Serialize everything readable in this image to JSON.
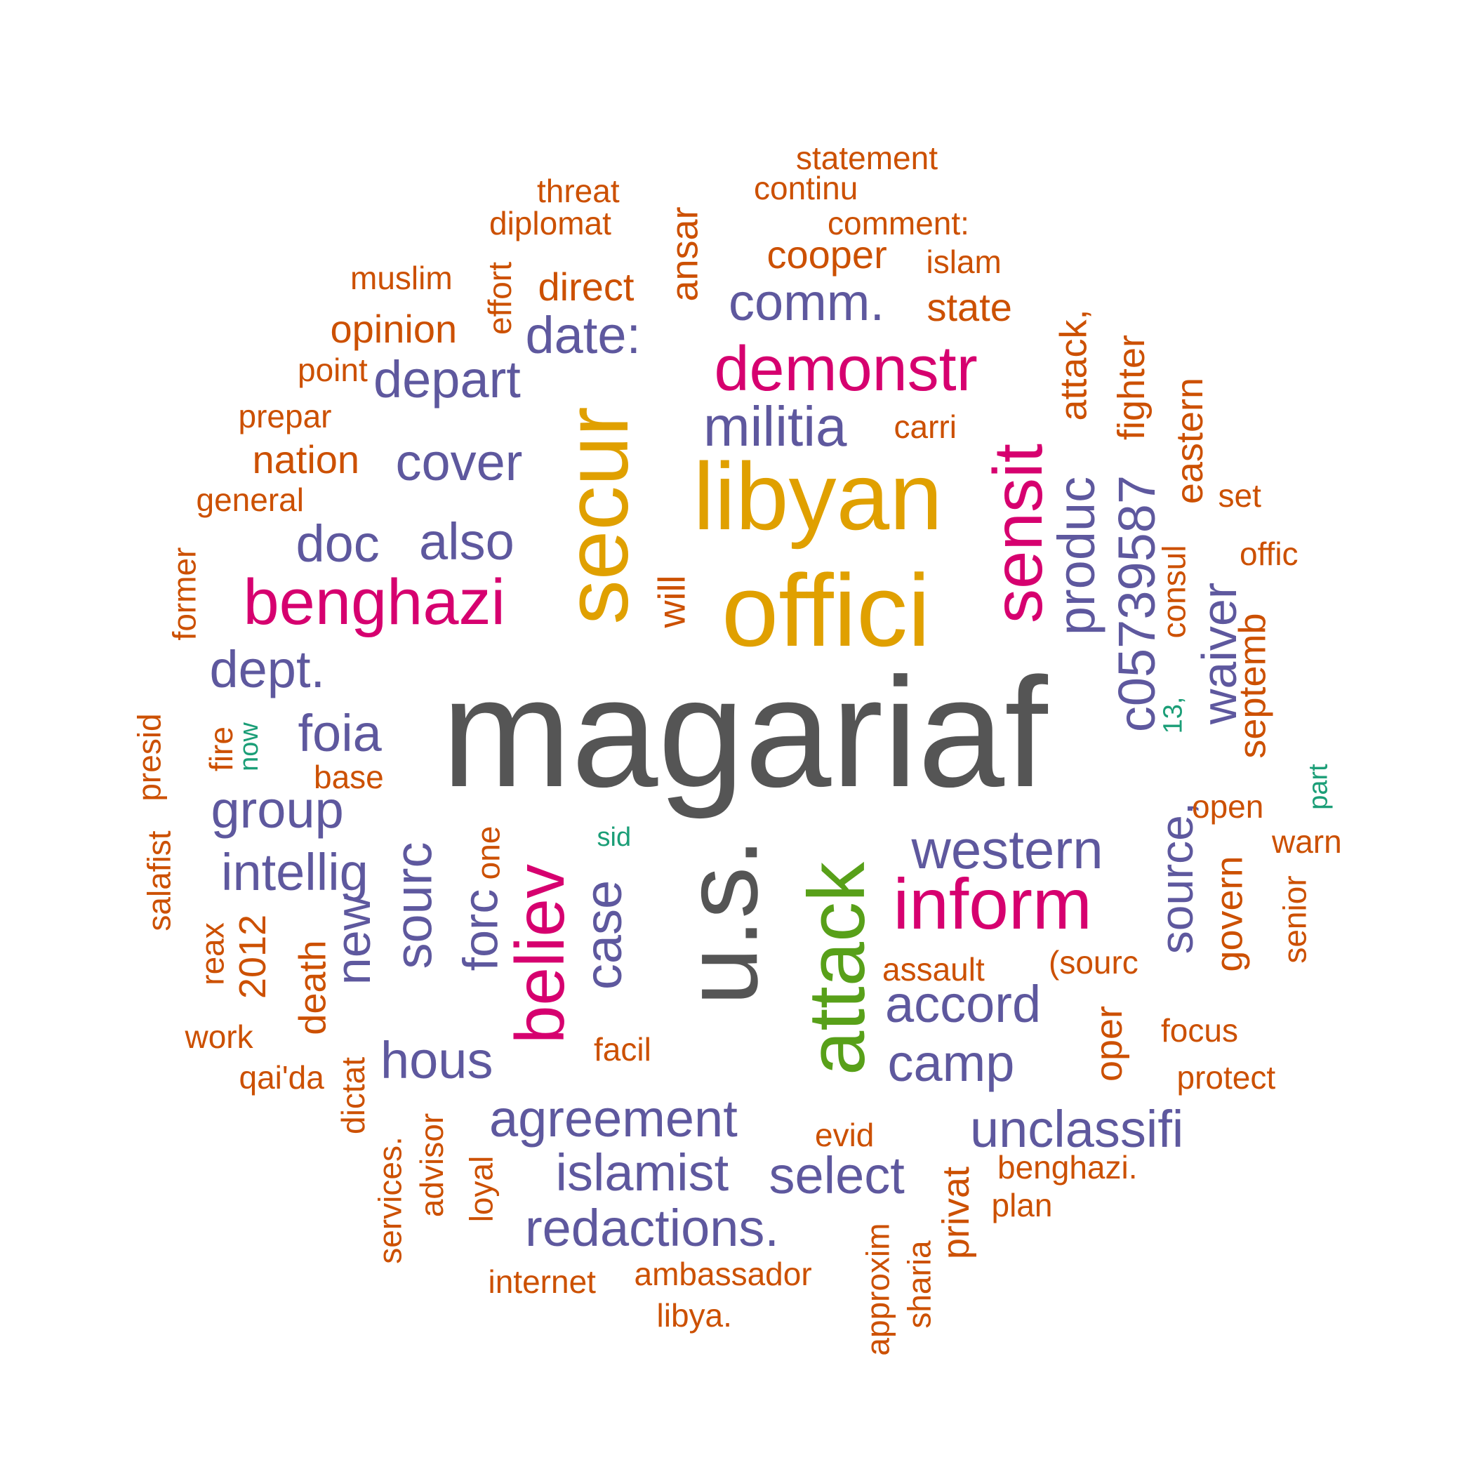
{
  "colors": {
    "gray": "#555555",
    "gold": "#E0A000",
    "pink": "#D6006F",
    "green": "#58A019",
    "purple": "#5E589E",
    "orange": "#CC5000",
    "teal": "#1B9E77"
  },
  "words": [
    {
      "text": "magariaf",
      "weight": 10,
      "tier": "gray"
    },
    {
      "text": "u.s.",
      "weight": 9,
      "tier": "gray"
    },
    {
      "text": "offici",
      "weight": 8,
      "tier": "gold"
    },
    {
      "text": "libyan",
      "weight": 8,
      "tier": "gold"
    },
    {
      "text": "secur",
      "weight": 8,
      "tier": "gold"
    },
    {
      "text": "attack",
      "weight": 7,
      "tier": "green"
    },
    {
      "text": "benghazi",
      "weight": 6,
      "tier": "pink"
    },
    {
      "text": "inform",
      "weight": 6,
      "tier": "pink"
    },
    {
      "text": "believ",
      "weight": 6,
      "tier": "pink"
    },
    {
      "text": "sensit",
      "weight": 6,
      "tier": "pink"
    },
    {
      "text": "demonstr",
      "weight": 6,
      "tier": "pink"
    },
    {
      "text": "western",
      "weight": 5,
      "tier": "purple"
    },
    {
      "text": "militia",
      "weight": 5,
      "tier": "purple"
    },
    {
      "text": "c05739587",
      "weight": 5,
      "tier": "purple"
    },
    {
      "text": "agreement",
      "weight": 5,
      "tier": "purple"
    },
    {
      "text": "redactions.",
      "weight": 5,
      "tier": "purple"
    },
    {
      "text": "unclassifi",
      "weight": 5,
      "tier": "purple"
    },
    {
      "text": "islamist",
      "weight": 5,
      "tier": "purple"
    },
    {
      "text": "select",
      "weight": 5,
      "tier": "purple"
    },
    {
      "text": "accord",
      "weight": 5,
      "tier": "purple"
    },
    {
      "text": "camp",
      "weight": 5,
      "tier": "purple"
    },
    {
      "text": "hous",
      "weight": 5,
      "tier": "purple"
    },
    {
      "text": "sourc",
      "weight": 5,
      "tier": "purple"
    },
    {
      "text": "case",
      "weight": 5,
      "tier": "purple"
    },
    {
      "text": "produc",
      "weight": 5,
      "tier": "purple"
    },
    {
      "text": "waiver",
      "weight": 5,
      "tier": "purple"
    },
    {
      "text": "source,",
      "weight": 5,
      "tier": "purple"
    },
    {
      "text": "depart",
      "weight": 5,
      "tier": "purple"
    },
    {
      "text": "date:",
      "weight": 5,
      "tier": "purple"
    },
    {
      "text": "comm.",
      "weight": 5,
      "tier": "purple"
    },
    {
      "text": "cover",
      "weight": 5,
      "tier": "purple"
    },
    {
      "text": "doc",
      "weight": 5,
      "tier": "purple"
    },
    {
      "text": "also",
      "weight": 5,
      "tier": "purple"
    },
    {
      "text": "dept.",
      "weight": 5,
      "tier": "purple"
    },
    {
      "text": "foia",
      "weight": 5,
      "tier": "purple"
    },
    {
      "text": "group",
      "weight": 5,
      "tier": "purple"
    },
    {
      "text": "intellig",
      "weight": 5,
      "tier": "purple"
    },
    {
      "text": "new",
      "weight": 5,
      "tier": "purple"
    },
    {
      "text": "forc",
      "weight": 5,
      "tier": "purple"
    },
    {
      "text": "statement",
      "weight": 3,
      "tier": "orange"
    },
    {
      "text": "threat",
      "weight": 3,
      "tier": "orange"
    },
    {
      "text": "continu",
      "weight": 3,
      "tier": "orange"
    },
    {
      "text": "diplomat",
      "weight": 3,
      "tier": "orange"
    },
    {
      "text": "comment:",
      "weight": 3,
      "tier": "orange"
    },
    {
      "text": "ansar",
      "weight": 4,
      "tier": "orange"
    },
    {
      "text": "cooper",
      "weight": 4,
      "tier": "orange"
    },
    {
      "text": "islam",
      "weight": 3,
      "tier": "orange"
    },
    {
      "text": "muslim",
      "weight": 3,
      "tier": "orange"
    },
    {
      "text": "effort",
      "weight": 3,
      "tier": "orange"
    },
    {
      "text": "direct",
      "weight": 4,
      "tier": "orange"
    },
    {
      "text": "state",
      "weight": 4,
      "tier": "orange"
    },
    {
      "text": "opinion",
      "weight": 4,
      "tier": "orange"
    },
    {
      "text": "attack,",
      "weight": 4,
      "tier": "orange"
    },
    {
      "text": "fighter",
      "weight": 4,
      "tier": "orange"
    },
    {
      "text": "point",
      "weight": 3,
      "tier": "orange"
    },
    {
      "text": "eastern",
      "weight": 4,
      "tier": "orange"
    },
    {
      "text": "prepar",
      "weight": 3,
      "tier": "orange"
    },
    {
      "text": "carri",
      "weight": 3,
      "tier": "orange"
    },
    {
      "text": "nation",
      "weight": 4,
      "tier": "orange"
    },
    {
      "text": "general",
      "weight": 3,
      "tier": "orange"
    },
    {
      "text": "set",
      "weight": 3,
      "tier": "orange"
    },
    {
      "text": "offic",
      "weight": 3,
      "tier": "orange"
    },
    {
      "text": "consul",
      "weight": 3,
      "tier": "orange"
    },
    {
      "text": "former",
      "weight": 3,
      "tier": "orange"
    },
    {
      "text": "will",
      "weight": 4,
      "tier": "orange"
    },
    {
      "text": "septemb",
      "weight": 4,
      "tier": "orange"
    },
    {
      "text": "13,",
      "weight": 2,
      "tier": "teal"
    },
    {
      "text": "presid",
      "weight": 3,
      "tier": "orange"
    },
    {
      "text": "fire",
      "weight": 3,
      "tier": "orange"
    },
    {
      "text": "now",
      "weight": 2,
      "tier": "teal"
    },
    {
      "text": "base",
      "weight": 3,
      "tier": "orange"
    },
    {
      "text": "part",
      "weight": 2,
      "tier": "teal"
    },
    {
      "text": "open",
      "weight": 3,
      "tier": "orange"
    },
    {
      "text": "sid",
      "weight": 2,
      "tier": "teal"
    },
    {
      "text": "one",
      "weight": 3,
      "tier": "orange"
    },
    {
      "text": "warn",
      "weight": 3,
      "tier": "orange"
    },
    {
      "text": "salafist",
      "weight": 3,
      "tier": "orange"
    },
    {
      "text": "govern",
      "weight": 4,
      "tier": "orange"
    },
    {
      "text": "senior",
      "weight": 3,
      "tier": "orange"
    },
    {
      "text": "reax",
      "weight": 3,
      "tier": "orange"
    },
    {
      "text": "2012",
      "weight": 4,
      "tier": "orange"
    },
    {
      "text": "death",
      "weight": 4,
      "tier": "orange"
    },
    {
      "text": "assault",
      "weight": 3,
      "tier": "orange"
    },
    {
      "text": "(sourc",
      "weight": 3,
      "tier": "orange"
    },
    {
      "text": "work",
      "weight": 3,
      "tier": "orange"
    },
    {
      "text": "oper",
      "weight": 4,
      "tier": "orange"
    },
    {
      "text": "focus",
      "weight": 3,
      "tier": "orange"
    },
    {
      "text": "facil",
      "weight": 3,
      "tier": "orange"
    },
    {
      "text": "qai'da",
      "weight": 3,
      "tier": "orange"
    },
    {
      "text": "protect",
      "weight": 3,
      "tier": "orange"
    },
    {
      "text": "dictat",
      "weight": 3,
      "tier": "orange"
    },
    {
      "text": "evid",
      "weight": 3,
      "tier": "orange"
    },
    {
      "text": "advisor",
      "weight": 3,
      "tier": "orange"
    },
    {
      "text": "services.",
      "weight": 3,
      "tier": "orange"
    },
    {
      "text": "benghazi.",
      "weight": 3,
      "tier": "orange"
    },
    {
      "text": "loyal",
      "weight": 3,
      "tier": "orange"
    },
    {
      "text": "privat",
      "weight": 4,
      "tier": "orange"
    },
    {
      "text": "plan",
      "weight": 3,
      "tier": "orange"
    },
    {
      "text": "approxim",
      "weight": 3,
      "tier": "orange"
    },
    {
      "text": "sharia",
      "weight": 3,
      "tier": "orange"
    },
    {
      "text": "internet",
      "weight": 3,
      "tier": "orange"
    },
    {
      "text": "ambassador",
      "weight": 3,
      "tier": "orange"
    },
    {
      "text": "libya.",
      "weight": 3,
      "tier": "orange"
    }
  ]
}
